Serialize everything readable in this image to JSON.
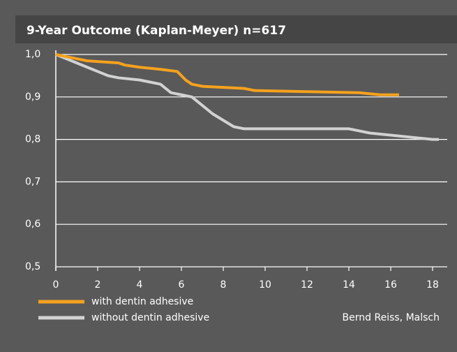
{
  "chart_data": {
    "type": "line",
    "title": "9-Year Outcome (Kaplan-Meyer) n=617",
    "source": "Bernd Reiss, Malsch",
    "grid": true,
    "legend": "bottom left",
    "xlim": [
      0,
      18.7
    ],
    "xticks": [
      0,
      2,
      4,
      6,
      8,
      10,
      12,
      14,
      16,
      18
    ],
    "ylim": [
      0.5,
      1.0
    ],
    "yticks": [
      {
        "value": 0.5,
        "label": "0,5"
      },
      {
        "value": 0.6,
        "label": "0,6"
      },
      {
        "value": 0.7,
        "label": "0,7"
      },
      {
        "value": 0.8,
        "label": "0,8"
      },
      {
        "value": 0.9,
        "label": "0,9"
      },
      {
        "value": 1.0,
        "label": "1,0"
      }
    ],
    "series": [
      {
        "name": "with dentin adhesive",
        "color": "#f5a21e",
        "x": [
          0,
          0.5,
          1,
          1.5,
          3,
          3.3,
          4,
          5,
          5.8,
          6,
          6.2,
          6.5,
          7,
          9,
          9.5,
          14.5,
          15.5,
          16.4
        ],
        "values": [
          1.0,
          0.995,
          0.99,
          0.985,
          0.98,
          0.975,
          0.97,
          0.965,
          0.96,
          0.95,
          0.94,
          0.93,
          0.925,
          0.92,
          0.915,
          0.91,
          0.905,
          0.905
        ]
      },
      {
        "name": "without dentin adhesive",
        "color": "#d2d2d2",
        "x": [
          0,
          0.5,
          1,
          1.5,
          2,
          2.5,
          3,
          4,
          4.5,
          5,
          5.5,
          6,
          6.5,
          7,
          7.5,
          8,
          8.5,
          9,
          14,
          14.5,
          15,
          16,
          17,
          18,
          18.3
        ],
        "values": [
          1.0,
          0.99,
          0.98,
          0.97,
          0.96,
          0.95,
          0.945,
          0.94,
          0.935,
          0.93,
          0.91,
          0.905,
          0.9,
          0.88,
          0.86,
          0.845,
          0.83,
          0.825,
          0.825,
          0.82,
          0.815,
          0.81,
          0.805,
          0.8,
          0.8
        ]
      }
    ]
  }
}
